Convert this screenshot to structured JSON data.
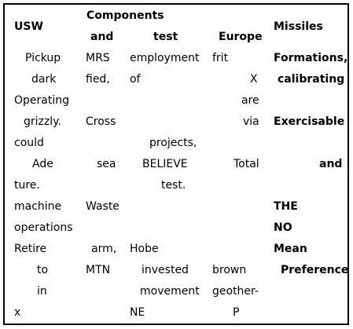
{
  "headers": {
    "usw": "USW",
    "components_and": [
      "Components",
      "and"
    ],
    "test": "test",
    "europe": "Europe",
    "missiles": "Missiles"
  },
  "rows": {
    "r1": {
      "usw": "Pickup",
      "comp": "MRS",
      "test": "employment",
      "europe": "frit",
      "missiles": "Formations,"
    },
    "r2": {
      "usw": "dark",
      "comp": "fied,",
      "test": "of",
      "europe": "X",
      "missiles": "calibrating"
    },
    "r3": {
      "usw": "Operating",
      "europe": "are"
    },
    "r4": {
      "usw": "grizzly.",
      "comp": "Cross",
      "europe": "via",
      "missiles": "Exercisable"
    },
    "r5": {
      "usw": "could",
      "test": "projects,"
    },
    "r6": {
      "usw": "Ade",
      "comp": "sea",
      "test": "BELIEVE",
      "europe": "Total",
      "missiles": "and"
    },
    "r7": {
      "usw": "ture.",
      "test": "test."
    },
    "r8": {
      "usw": "machine",
      "comp": "Waste",
      "missiles": "THE"
    },
    "r9": {
      "usw": "operations",
      "missiles": "NO"
    },
    "r10": {
      "usw": "Retire",
      "comp": "arm,",
      "test": "Hobe",
      "missiles": "Mean"
    },
    "r11": {
      "usw": "to",
      "comp": "MTN",
      "test": "invested",
      "europe": "brown",
      "missiles": "Preference"
    },
    "r12": {
      "usw": "in",
      "test": "movement",
      "europe": "geother-"
    },
    "r13": {
      "usw": "x",
      "test": "NE",
      "europe": "P"
    }
  }
}
